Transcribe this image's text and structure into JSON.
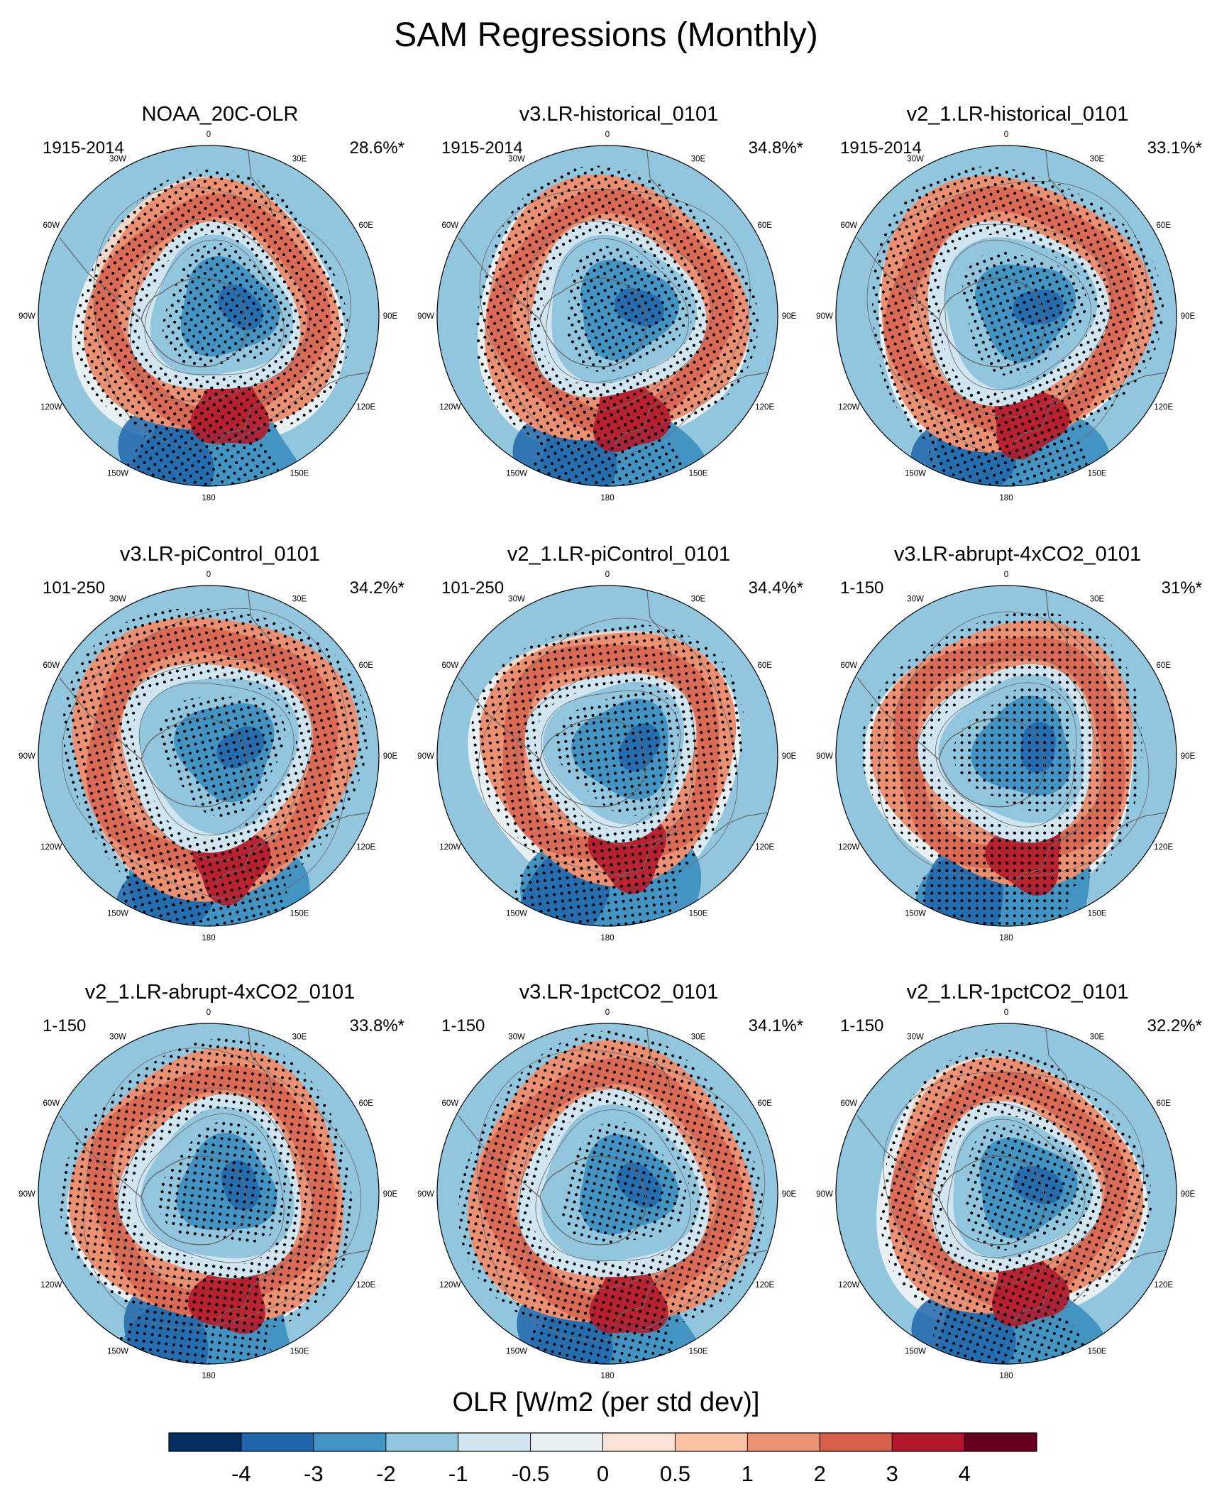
{
  "title": "SAM Regressions (Monthly)",
  "chart_data": {
    "type": "polar-contour-map",
    "projection": "south-polar-stereographic",
    "longitude_labels": [
      "0",
      "30E",
      "60E",
      "90E",
      "120E",
      "150E",
      "180",
      "150W",
      "120W",
      "90W",
      "60W",
      "30W"
    ],
    "panels": [
      {
        "title": "NOAA_20C-OLR",
        "period": "1915-2014",
        "variance": "28.6%*"
      },
      {
        "title": "v3.LR-historical_0101",
        "period": "1915-2014",
        "variance": "34.8%*"
      },
      {
        "title": "v2_1.LR-historical_0101",
        "period": "1915-2014",
        "variance": "33.1%*"
      },
      {
        "title": "v3.LR-piControl_0101",
        "period": "101-250",
        "variance": "34.2%*"
      },
      {
        "title": "v2_1.LR-piControl_0101",
        "period": "101-250",
        "variance": "34.4%*"
      },
      {
        "title": "v3.LR-abrupt-4xCO2_0101",
        "period": "1-150",
        "variance": "31%*"
      },
      {
        "title": "v2_1.LR-abrupt-4xCO2_0101",
        "period": "1-150",
        "variance": "33.8%*"
      },
      {
        "title": "v3.LR-1pctCO2_0101",
        "period": "1-150",
        "variance": "34.1%*"
      },
      {
        "title": "v2_1.LR-1pctCO2_0101",
        "period": "1-150",
        "variance": "32.2%*"
      }
    ],
    "colorbar": {
      "title": "OLR [W/m2 (per std dev)]",
      "tick_labels": [
        "-4",
        "-3",
        "-2",
        "-1",
        "-0.5",
        "0",
        "0.5",
        "1",
        "2",
        "3",
        "4"
      ],
      "colors": [
        "#053061",
        "#2166ac",
        "#4393c3",
        "#92c5de",
        "#d1e5f0",
        "#e8f0f4",
        "#fbe4d6",
        "#fbc3a5",
        "#eb9072",
        "#d6604d",
        "#b2182b",
        "#67001f"
      ]
    },
    "stippling": "significant regions stippled",
    "pattern": "negative over Antarctica, positive ring at mid-latitudes, negative band near 180"
  }
}
